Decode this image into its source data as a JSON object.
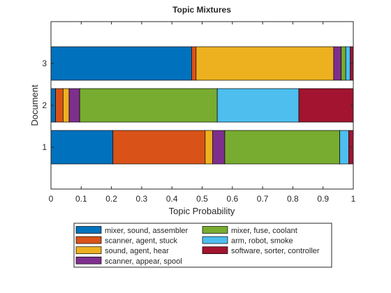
{
  "chart_data": {
    "type": "bar",
    "orientation": "horizontal",
    "stacked": true,
    "title": "Topic Mixtures",
    "xlabel": "Topic Probability",
    "ylabel": "Document",
    "xlim": [
      0,
      1
    ],
    "ylim": [
      0,
      4
    ],
    "x_ticks": [
      0,
      0.1,
      0.2,
      0.3,
      0.4,
      0.5,
      0.6,
      0.7,
      0.8,
      0.9,
      1
    ],
    "x_tick_labels": [
      "0",
      "0.1",
      "0.2",
      "0.3",
      "0.4",
      "0.5",
      "0.6",
      "0.7",
      "0.8",
      "0.9",
      "1"
    ],
    "y_ticks": [
      1,
      2,
      3
    ],
    "y_tick_labels": [
      "1",
      "2",
      "3"
    ],
    "categories": [
      "1",
      "2",
      "3"
    ],
    "grid": false,
    "legend_placement": "bottom-outside",
    "legend_columns": 2,
    "series": [
      {
        "name": "mixer, sound, assembler",
        "color": "#0072BD",
        "values": [
          0.205,
          0.015,
          0.465
        ]
      },
      {
        "name": "scanner, agent, stuck",
        "color": "#D95319",
        "values": [
          0.305,
          0.025,
          0.015
        ]
      },
      {
        "name": "sound, agent, hear",
        "color": "#EDB120",
        "values": [
          0.025,
          0.02,
          0.455
        ]
      },
      {
        "name": "scanner, appear, spool",
        "color": "#7E2F8E",
        "values": [
          0.04,
          0.035,
          0.025
        ]
      },
      {
        "name": "mixer, fuse, coolant",
        "color": "#77AC30",
        "values": [
          0.38,
          0.455,
          0.015
        ]
      },
      {
        "name": "arm, robot, smoke",
        "color": "#4DBEEE",
        "values": [
          0.03,
          0.27,
          0.015
        ]
      },
      {
        "name": "software, sorter, controller",
        "color": "#A2142F",
        "values": [
          0.015,
          0.18,
          0.01
        ]
      }
    ]
  }
}
